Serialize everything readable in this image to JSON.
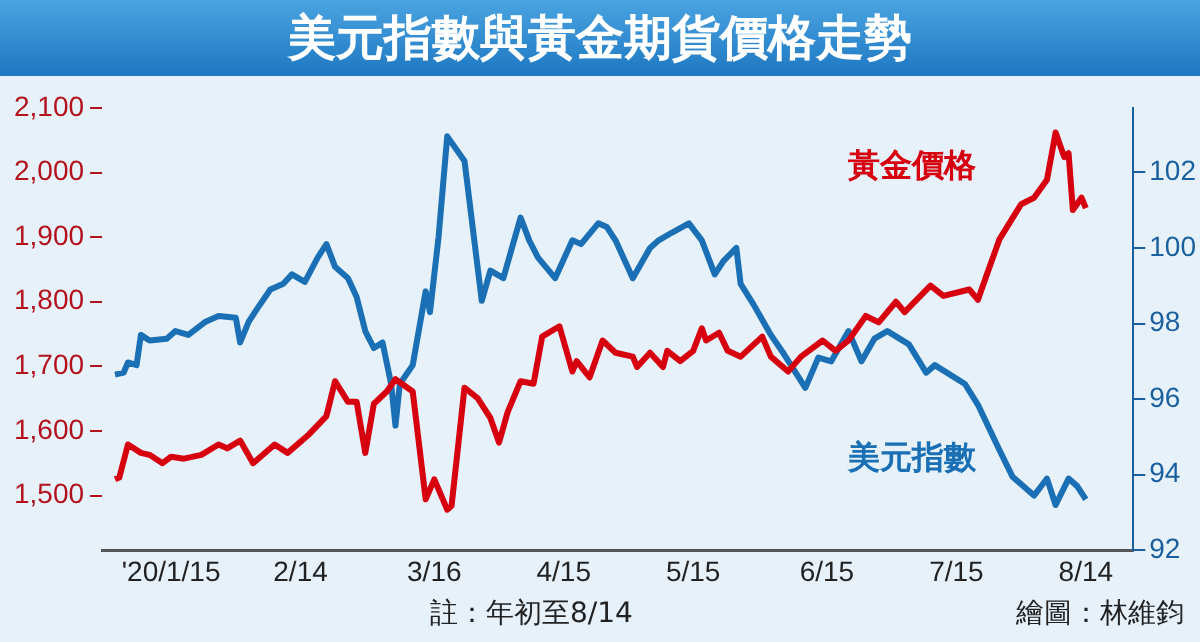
{
  "chart_data": {
    "type": "line",
    "title": "美元指數與黃金期貨價格走勢",
    "annotations": [
      "註：年初至8/14",
      "繪圖：林維鈞"
    ],
    "xlim": [
      "2019-12-30",
      "2020-08-25"
    ],
    "xticks": [
      {
        "value": "2020-01-15",
        "label": "'20/1/15"
      },
      {
        "value": "2020-02-14",
        "label": "2/14"
      },
      {
        "value": "2020-03-16",
        "label": "3/16"
      },
      {
        "value": "2020-04-15",
        "label": "4/15"
      },
      {
        "value": "2020-05-15",
        "label": "5/15"
      },
      {
        "value": "2020-06-15",
        "label": "6/15"
      },
      {
        "value": "2020-07-15",
        "label": "7/15"
      },
      {
        "value": "2020-08-14",
        "label": "8/14"
      }
    ],
    "ylim": [
      1415,
      2100
    ],
    "yticks": [
      {
        "value": 1500,
        "label": "1,500"
      },
      {
        "value": 1600,
        "label": "1,600"
      },
      {
        "value": 1700,
        "label": "1,700"
      },
      {
        "value": 1800,
        "label": "1,800"
      },
      {
        "value": 1900,
        "label": "1,900"
      },
      {
        "value": 2000,
        "label": "2,000"
      },
      {
        "value": 2100,
        "label": "2,100"
      }
    ],
    "y2lim": [
      92,
      103.7
    ],
    "y2ticks": [
      92,
      94,
      96,
      98,
      100,
      102
    ],
    "legend": false,
    "grid": false,
    "marker": "none",
    "series": [
      {
        "name": "黃金價格",
        "color": "#d7000f",
        "x": [
          "2020-01-02",
          "2020-01-03",
          "2020-01-05",
          "2020-01-08",
          "2020-01-10",
          "2020-01-13",
          "2020-01-15",
          "2020-01-18",
          "2020-01-22",
          "2020-01-26",
          "2020-01-28",
          "2020-01-31",
          "2020-02-03",
          "2020-02-08",
          "2020-02-11",
          "2020-02-16",
          "2020-02-20",
          "2020-02-22",
          "2020-02-25",
          "2020-02-27",
          "2020-02-29",
          "2020-03-02",
          "2020-03-05",
          "2020-03-07",
          "2020-03-11",
          "2020-03-14",
          "2020-03-16",
          "2020-03-19",
          "2020-03-20",
          "2020-03-23",
          "2020-03-26",
          "2020-03-29",
          "2020-03-31",
          "2020-04-02",
          "2020-04-05",
          "2020-04-08",
          "2020-04-10",
          "2020-04-14",
          "2020-04-17",
          "2020-04-18",
          "2020-04-21",
          "2020-04-24",
          "2020-04-27",
          "2020-05-01",
          "2020-05-02",
          "2020-05-05",
          "2020-05-08",
          "2020-05-09",
          "2020-05-12",
          "2020-05-15",
          "2020-05-17",
          "2020-05-18",
          "2020-05-21",
          "2020-05-23",
          "2020-05-26",
          "2020-05-31",
          "2020-06-02",
          "2020-06-06",
          "2020-06-09",
          "2020-06-14",
          "2020-06-17",
          "2020-06-20",
          "2020-06-24",
          "2020-06-27",
          "2020-07-01",
          "2020-07-03",
          "2020-07-09",
          "2020-07-12",
          "2020-07-18",
          "2020-07-20",
          "2020-07-22",
          "2020-07-25",
          "2020-07-30",
          "2020-08-02",
          "2020-08-05",
          "2020-08-07",
          "2020-08-09",
          "2020-08-10",
          "2020-08-11",
          "2020-08-13",
          "2020-08-14"
        ],
        "values": [
          1525,
          1528,
          1579,
          1566,
          1563,
          1550,
          1560,
          1557,
          1563,
          1579,
          1573,
          1585,
          1550,
          1579,
          1566,
          1595,
          1623,
          1677,
          1645,
          1645,
          1566,
          1642,
          1661,
          1680,
          1661,
          1494,
          1525,
          1478,
          1484,
          1667,
          1651,
          1620,
          1582,
          1629,
          1677,
          1673,
          1746,
          1762,
          1692,
          1708,
          1683,
          1740,
          1721,
          1715,
          1699,
          1721,
          1699,
          1724,
          1708,
          1724,
          1759,
          1740,
          1752,
          1724,
          1715,
          1746,
          1715,
          1692,
          1715,
          1740,
          1724,
          1740,
          1778,
          1768,
          1800,
          1784,
          1825,
          1809,
          1819,
          1803,
          1841,
          1897,
          1951,
          1961,
          1989,
          2062,
          2024,
          2030,
          1942,
          1961,
          1945
        ]
      },
      {
        "name": "美元指數",
        "color": "#1a6fb5",
        "axis": "y2",
        "x": [
          "2020-01-02",
          "2020-01-04",
          "2020-01-05",
          "2020-01-07",
          "2020-01-08",
          "2020-01-10",
          "2020-01-14",
          "2020-01-16",
          "2020-01-19",
          "2020-01-23",
          "2020-01-26",
          "2020-01-30",
          "2020-01-31",
          "2020-02-02",
          "2020-02-04",
          "2020-02-07",
          "2020-02-10",
          "2020-02-12",
          "2020-02-15",
          "2020-02-18",
          "2020-02-20",
          "2020-02-22",
          "2020-02-25",
          "2020-02-27",
          "2020-02-29",
          "2020-03-02",
          "2020-03-04",
          "2020-03-06",
          "2020-03-07",
          "2020-03-08",
          "2020-03-11",
          "2020-03-14",
          "2020-03-15",
          "2020-03-17",
          "2020-03-19",
          "2020-03-23",
          "2020-03-27",
          "2020-03-29",
          "2020-04-01",
          "2020-04-05",
          "2020-04-07",
          "2020-04-09",
          "2020-04-13",
          "2020-04-17",
          "2020-04-19",
          "2020-04-23",
          "2020-04-25",
          "2020-04-27",
          "2020-05-01",
          "2020-05-05",
          "2020-05-07",
          "2020-05-10",
          "2020-05-14",
          "2020-05-17",
          "2020-05-20",
          "2020-05-22",
          "2020-05-25",
          "2020-05-26",
          "2020-05-29",
          "2020-06-02",
          "2020-06-05",
          "2020-06-10",
          "2020-06-13",
          "2020-06-16",
          "2020-06-20",
          "2020-06-23",
          "2020-06-26",
          "2020-06-29",
          "2020-07-04",
          "2020-07-08",
          "2020-07-10",
          "2020-07-17",
          "2020-07-20",
          "2020-07-25",
          "2020-07-28",
          "2020-08-02",
          "2020-08-05",
          "2020-08-07",
          "2020-08-10",
          "2020-08-12",
          "2020-08-14"
        ],
        "values": [
          96.65,
          96.7,
          96.97,
          96.9,
          97.7,
          97.55,
          97.6,
          97.8,
          97.7,
          98.05,
          98.2,
          98.15,
          97.5,
          98.05,
          98.4,
          98.9,
          99.05,
          99.3,
          99.1,
          99.75,
          100.1,
          99.5,
          99.2,
          98.7,
          97.8,
          97.35,
          97.5,
          96.4,
          95.3,
          96.4,
          96.9,
          98.85,
          98.3,
          100.3,
          102.95,
          102.3,
          98.6,
          99.4,
          99.2,
          100.8,
          100.2,
          99.75,
          99.2,
          100.2,
          100.1,
          100.65,
          100.55,
          100.2,
          99.2,
          100,
          100.2,
          100.4,
          100.65,
          100.2,
          99.3,
          99.65,
          100,
          99.05,
          98.5,
          97.7,
          97.2,
          96.3,
          97.1,
          97,
          97.8,
          97,
          97.6,
          97.8,
          97.45,
          96.7,
          96.9,
          96.4,
          95.85,
          94.65,
          93.95,
          93.45,
          93.9,
          93.2,
          93.9,
          93.7,
          93.35
        ]
      }
    ]
  }
}
